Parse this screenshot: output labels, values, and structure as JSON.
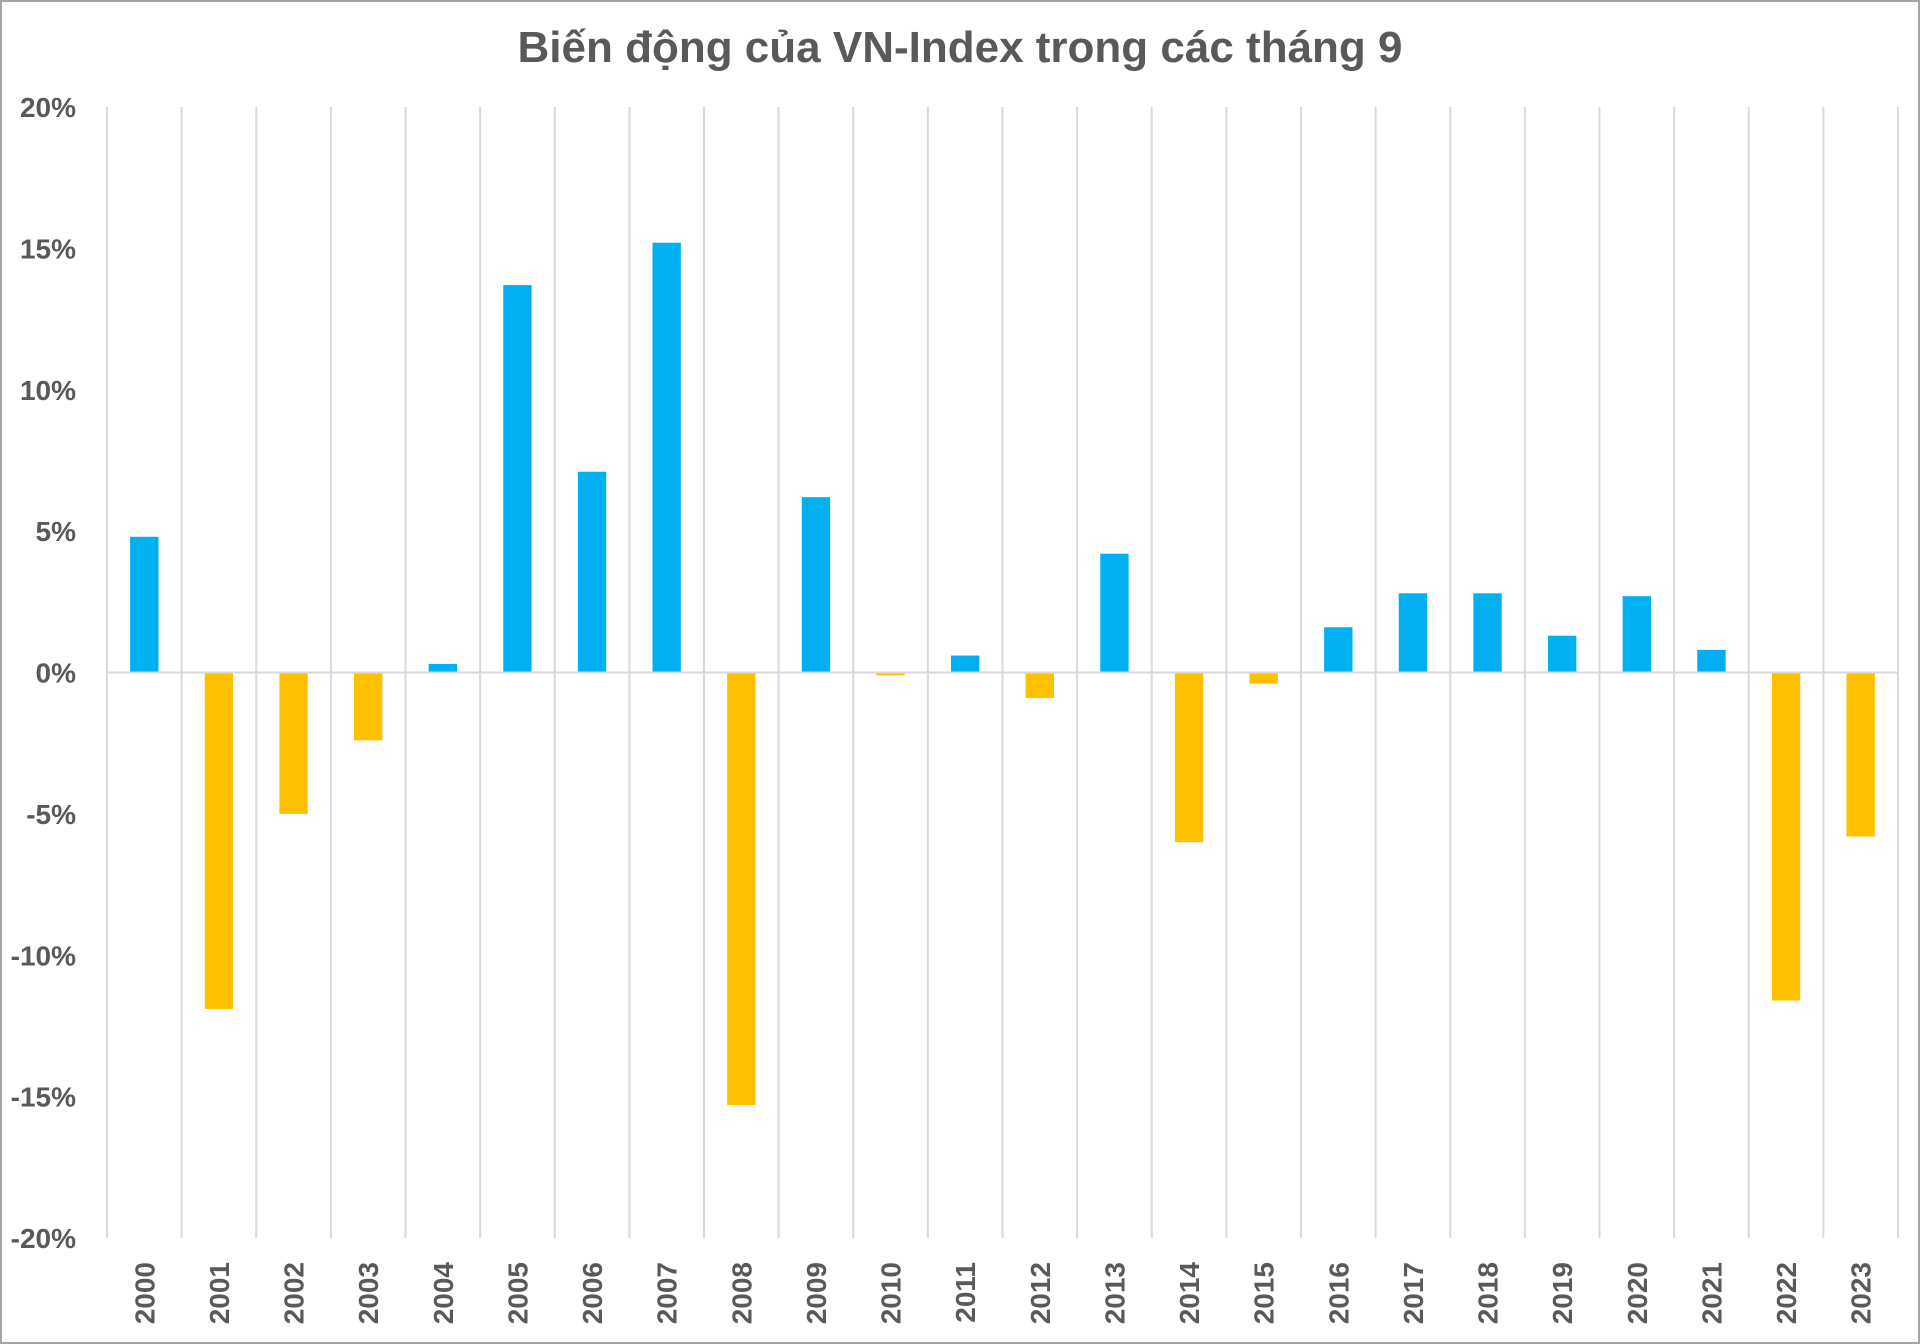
{
  "colors": {
    "positive": "#00B0F0",
    "negative": "#FFC000",
    "grid": "#D9D9D9",
    "zero_line": "#D9D9D9",
    "text": "#595959",
    "border": "#A6A6A6"
  },
  "chart_data": {
    "type": "bar",
    "title": "Biến động của VN-Index trong các tháng 9",
    "xlabel": "",
    "ylabel": "",
    "ylim": [
      -20,
      20
    ],
    "y_ticks": [
      20,
      15,
      10,
      5,
      0,
      -5,
      -10,
      -15,
      -20
    ],
    "y_tick_labels": [
      "20%",
      "15%",
      "10%",
      "5%",
      "0%",
      "-5%",
      "-10%",
      "-15%",
      "-20%"
    ],
    "x_grid": true,
    "y_grid": false,
    "legend": "none",
    "categories": [
      "2000",
      "2001",
      "2002",
      "2003",
      "2004",
      "2005",
      "2006",
      "2007",
      "2008",
      "2009",
      "2010",
      "2011",
      "2012",
      "2013",
      "2014",
      "2015",
      "2016",
      "2017",
      "2018",
      "2019",
      "2020",
      "2021",
      "2022",
      "2023"
    ],
    "series": [
      {
        "values": [
          4.8,
          -11.9,
          -5.0,
          -2.4,
          0.3,
          13.7,
          7.1,
          15.2,
          -15.3,
          6.2,
          -0.1,
          0.6,
          -0.9,
          4.2,
          -6.0,
          -0.4,
          1.6,
          2.8,
          2.8,
          1.3,
          2.7,
          0.8,
          -11.6,
          -5.8
        ]
      }
    ]
  }
}
